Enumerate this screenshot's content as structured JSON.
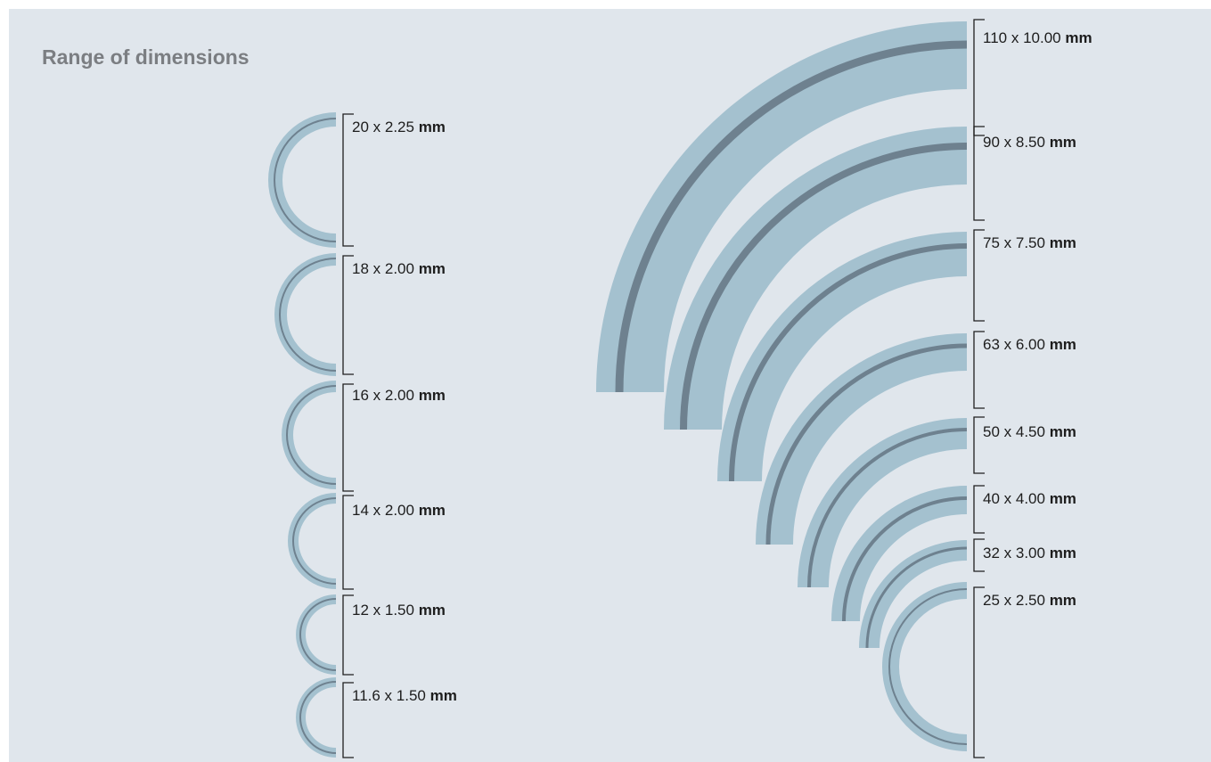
{
  "title": "Range of dimensions",
  "colors": {
    "background": "#e0e6ec",
    "ring_fill": "#a4c1cf",
    "center_line": "#6e818f",
    "bracket": "#1f1f1f",
    "title": "#7b7e82"
  },
  "unit": "mm",
  "sizes": [
    {
      "diameter": "110",
      "wall": "10.00"
    },
    {
      "diameter": "90",
      "wall": "8.50"
    },
    {
      "diameter": "75",
      "wall": "7.50"
    },
    {
      "diameter": "63",
      "wall": "6.00"
    },
    {
      "diameter": "50",
      "wall": "4.50"
    },
    {
      "diameter": "40",
      "wall": "4.00"
    },
    {
      "diameter": "32",
      "wall": "3.00"
    },
    {
      "diameter": "25",
      "wall": "2.50"
    },
    {
      "diameter": "20",
      "wall": "2.25"
    },
    {
      "diameter": "18",
      "wall": "2.00"
    },
    {
      "diameter": "16",
      "wall": "2.00"
    },
    {
      "diameter": "14",
      "wall": "2.00"
    },
    {
      "diameter": "12",
      "wall": "1.50"
    },
    {
      "diameter": "11.6",
      "wall": "1.50"
    }
  ]
}
